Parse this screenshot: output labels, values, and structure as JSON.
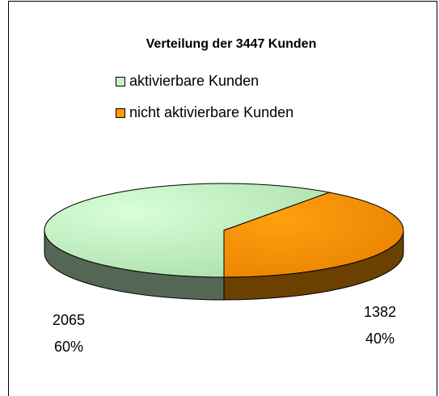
{
  "chart_data": {
    "type": "pie3d",
    "title": "Verteilung der 3447 Kunden",
    "categories": [
      "aktivierbare Kunden",
      "nicht aktivierbare Kunden"
    ],
    "values": [
      2065,
      1382
    ],
    "percents": [
      60,
      40
    ],
    "percent_labels": [
      "60%",
      "40%"
    ],
    "colors": [
      "#c8f2c8",
      "#ff9900"
    ],
    "legend": "top"
  }
}
